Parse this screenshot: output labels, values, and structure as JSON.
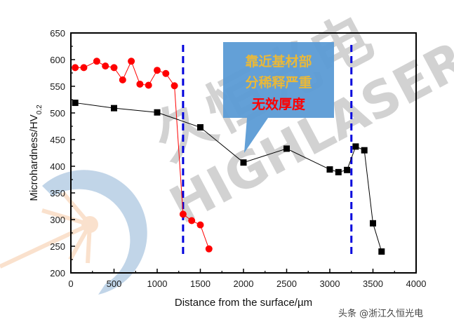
{
  "chart_data": {
    "type": "line",
    "title": "",
    "xlabel": "Distance from the surface/µm",
    "ylabel": "Microhardness/HV",
    "ylabel_subscript": "0.2",
    "xlim": [
      0,
      4000
    ],
    "ylim": [
      200,
      650
    ],
    "xticks": [
      0,
      500,
      1000,
      1500,
      2000,
      2500,
      3000,
      3500,
      4000
    ],
    "yticks": [
      200,
      250,
      300,
      350,
      400,
      450,
      500,
      550,
      600,
      650
    ],
    "grid": false,
    "legend": null,
    "series": [
      {
        "name": "red-circles",
        "color": "#ff0000",
        "marker": "circle",
        "x": [
          50,
          150,
          300,
          400,
          500,
          600,
          700,
          800,
          900,
          1000,
          1100,
          1200,
          1300,
          1400,
          1500,
          1600
        ],
        "y": [
          585,
          585,
          597,
          588,
          585,
          562,
          597,
          554,
          552,
          580,
          574,
          551,
          310,
          298,
          290,
          245
        ]
      },
      {
        "name": "black-squares",
        "color": "#000000",
        "marker": "square",
        "x": [
          50,
          500,
          1000,
          1500,
          2000,
          2500,
          3000,
          3100,
          3200,
          3300,
          3400,
          3500,
          3600
        ],
        "y": [
          519,
          509,
          501,
          473,
          407,
          433,
          394,
          389,
          393,
          437,
          430,
          293,
          240
        ]
      }
    ],
    "vlines": [
      {
        "x": 1300,
        "style": "dashed",
        "color": "#0000dd"
      },
      {
        "x": 3250,
        "style": "dashed",
        "color": "#0000dd"
      }
    ],
    "annotations": [
      {
        "type": "callout",
        "lines": [
          "靠近基材部",
          "分稀释严重",
          "无效厚度"
        ],
        "line_colors": [
          "#e8b83a",
          "#e8b83a",
          "#ff0000"
        ],
        "box_color": "#5b9bd5"
      }
    ]
  },
  "callout": {
    "line1": "靠近基材部",
    "line2": "分稀释严重",
    "line3": "无效厚度"
  },
  "watermark": {
    "cn": "久恒光电",
    "en": "HIGHLASER"
  },
  "credit": "头条 @浙江久恒光电"
}
